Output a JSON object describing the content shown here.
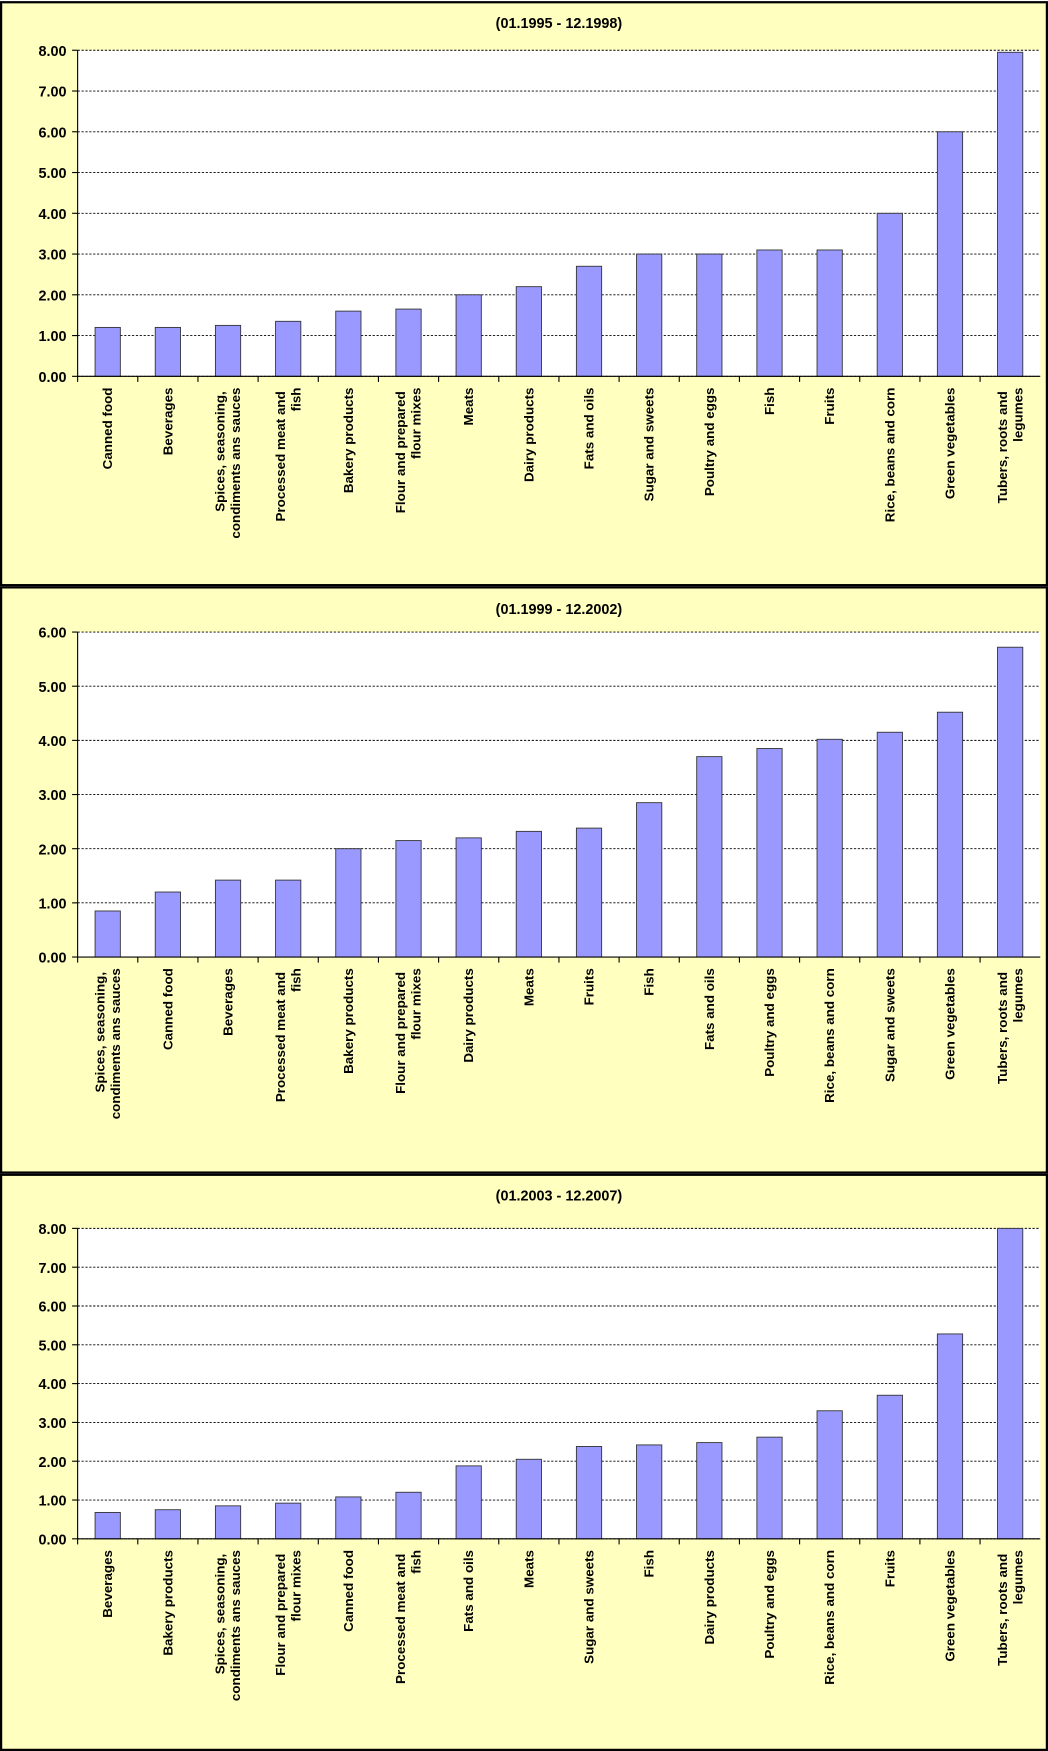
{
  "chart_data": [
    {
      "type": "bar",
      "title": "(01.1995 - 12.1998)",
      "color": "#9999ff",
      "grid": true,
      "categories": [
        "Canned food",
        "Beverages",
        "Spices, seasoning, condiments ans sauces",
        "Processed meat and fish",
        "Bakery products",
        "Flour and prepared flour mixes",
        "Meats",
        "Dairy products",
        "Fats and oils",
        "Sugar and sweets",
        "Poultry and eggs",
        "Fish",
        "Fruits",
        "Rice, beans and corn",
        "Green vegetables",
        "Tubers, roots and legumes"
      ],
      "values": [
        1.2,
        1.2,
        1.25,
        1.35,
        1.6,
        1.65,
        2.0,
        2.2,
        2.7,
        3.0,
        3.0,
        3.1,
        3.1,
        4.0,
        6.0,
        7.95
      ],
      "ylim": [
        0,
        8
      ],
      "yticks": [
        {
          "value": 0,
          "label": "0.00"
        },
        {
          "value": 1,
          "label": "1.00"
        },
        {
          "value": 2,
          "label": "2.00"
        },
        {
          "value": 3,
          "label": "3.00"
        },
        {
          "value": 4,
          "label": "4.00"
        },
        {
          "value": 5,
          "label": "5.00"
        },
        {
          "value": 6,
          "label": "6.00"
        },
        {
          "value": 7,
          "label": "7.00"
        },
        {
          "value": 8,
          "label": "8.00"
        }
      ]
    },
    {
      "type": "bar",
      "title": "(01.1999 - 12.2002)",
      "color": "#9999ff",
      "grid": true,
      "categories": [
        "Spices, seasoning, condiments ans sauces",
        "Canned food",
        "Beverages",
        "Processed meat and fish",
        "Bakery products",
        "Flour and prepared flour mixes",
        "Dairy products",
        "Meats",
        "Fruits",
        "Fish",
        "Fats and oils",
        "Poultry and eggs",
        "Rice, beans and corn",
        "Sugar and sweets",
        "Green vegetables",
        "Tubers, roots and legumes"
      ],
      "values": [
        0.85,
        1.2,
        1.42,
        1.42,
        2.0,
        2.15,
        2.2,
        2.32,
        2.38,
        2.85,
        3.7,
        3.85,
        4.02,
        4.15,
        4.52,
        5.72
      ],
      "ylim": [
        0,
        6
      ],
      "yticks": [
        {
          "value": 0,
          "label": "0.00"
        },
        {
          "value": 1,
          "label": "1.00"
        },
        {
          "value": 2,
          "label": "2.00"
        },
        {
          "value": 3,
          "label": "3.00"
        },
        {
          "value": 4,
          "label": "4.00"
        },
        {
          "value": 5,
          "label": "5.00"
        },
        {
          "value": 6,
          "label": "6.00"
        }
      ]
    },
    {
      "type": "bar",
      "title": "(01.2003 - 12.2007)",
      "color": "#9999ff",
      "grid": true,
      "categories": [
        "Beverages",
        "Bakery products",
        "Spices, seasoning, condiments ans sauces",
        "Flour and prepared flour mixes",
        "Canned food",
        "Processed meat and fish",
        "Fats and oils",
        "Meats",
        "Sugar and sweets",
        "Fish",
        "Dairy products",
        "Poultry and eggs",
        "Rice, beans and corn",
        "Fruits",
        "Green vegetables",
        "Tubers, roots and legumes"
      ],
      "values": [
        0.68,
        0.75,
        0.85,
        0.92,
        1.08,
        1.2,
        1.88,
        2.05,
        2.38,
        2.42,
        2.48,
        2.62,
        3.3,
        3.7,
        5.28,
        8.0
      ],
      "ylim": [
        0,
        8
      ],
      "yticks": [
        {
          "value": 0,
          "label": "0.00"
        },
        {
          "value": 1,
          "label": "1.00"
        },
        {
          "value": 2,
          "label": "2.00"
        },
        {
          "value": 3,
          "label": "3.00"
        },
        {
          "value": 4,
          "label": "4.00"
        },
        {
          "value": 5,
          "label": "5.00"
        },
        {
          "value": 6,
          "label": "6.00"
        },
        {
          "value": 7,
          "label": "7.00"
        },
        {
          "value": 8,
          "label": "8.00"
        }
      ]
    }
  ]
}
